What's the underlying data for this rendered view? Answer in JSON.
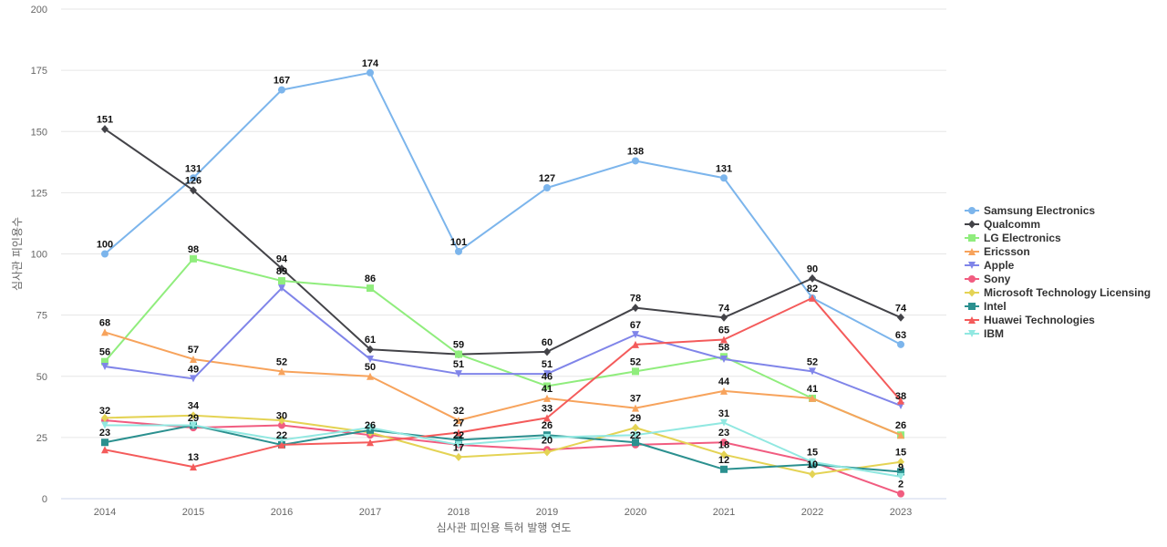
{
  "chart_data": {
    "type": "line",
    "title": "",
    "xlabel": "심사관 피인용 특허 발행 연도",
    "ylabel": "심사관 피인용수",
    "x": [
      "2014",
      "2015",
      "2016",
      "2017",
      "2018",
      "2019",
      "2020",
      "2021",
      "2022",
      "2023"
    ],
    "ylim": [
      0,
      200
    ],
    "yticks": [
      0,
      25,
      50,
      75,
      100,
      125,
      150,
      175,
      200
    ],
    "grid": true,
    "legend_position": "right",
    "series": [
      {
        "name": "Samsung Electronics",
        "color": "#7cb5ec",
        "marker": "circle",
        "values": [
          100,
          131,
          167,
          174,
          101,
          127,
          138,
          131,
          82,
          63
        ]
      },
      {
        "name": "Qualcomm",
        "color": "#434348",
        "marker": "diamond",
        "values": [
          151,
          126,
          94,
          61,
          59,
          60,
          78,
          74,
          90,
          74
        ]
      },
      {
        "name": "LG Electronics",
        "color": "#90ed7d",
        "marker": "square",
        "values": [
          56,
          98,
          89,
          86,
          59,
          46,
          52,
          58,
          41,
          26
        ]
      },
      {
        "name": "Ericsson",
        "color": "#f7a35c",
        "marker": "triangle",
        "values": [
          68,
          57,
          52,
          50,
          32,
          41,
          37,
          44,
          41,
          26
        ]
      },
      {
        "name": "Apple",
        "color": "#8085e9",
        "marker": "triangle-down",
        "values": [
          54,
          49,
          86,
          57,
          51,
          51,
          67,
          57,
          52,
          38
        ]
      },
      {
        "name": "Sony",
        "color": "#f15c80",
        "marker": "circle",
        "values": [
          32,
          29,
          30,
          26,
          22,
          20,
          22,
          23,
          15,
          2
        ]
      },
      {
        "name": "Microsoft Technology Licensing",
        "color": "#e4d354",
        "marker": "diamond",
        "values": [
          33,
          34,
          32,
          27,
          17,
          19,
          29,
          18,
          10,
          15
        ]
      },
      {
        "name": "Intel",
        "color": "#2b908f",
        "marker": "square",
        "values": [
          23,
          30,
          22,
          28,
          24,
          26,
          23,
          12,
          14,
          11
        ]
      },
      {
        "name": "Huawei Technologies",
        "color": "#f45b5b",
        "marker": "triangle",
        "values": [
          20,
          13,
          22,
          23,
          27,
          33,
          63,
          65,
          82,
          40
        ]
      },
      {
        "name": "IBM",
        "color": "#91e8e1",
        "marker": "triangle-down",
        "values": [
          30,
          30,
          24,
          29,
          22,
          25,
          26,
          31,
          15,
          9
        ]
      }
    ],
    "data_labels": [
      {
        "x": "2014",
        "values": [
          151,
          100,
          68,
          56,
          32,
          23
        ]
      },
      {
        "x": "2015",
        "values": [
          131,
          126,
          98,
          57,
          49,
          34,
          29,
          13
        ]
      },
      {
        "x": "2016",
        "values": [
          167,
          94,
          89,
          52,
          30,
          22
        ]
      },
      {
        "x": "2017",
        "values": [
          174,
          86,
          61,
          50,
          26
        ]
      },
      {
        "x": "2018",
        "values": [
          101,
          59,
          51,
          32,
          27,
          22,
          17
        ]
      },
      {
        "x": "2019",
        "values": [
          127,
          60,
          51,
          46,
          41,
          33,
          26,
          20
        ]
      },
      {
        "x": "2020",
        "values": [
          138,
          78,
          67,
          52,
          37,
          29,
          22
        ]
      },
      {
        "x": "2021",
        "values": [
          131,
          74,
          65,
          58,
          44,
          31,
          23,
          18,
          12
        ]
      },
      {
        "x": "2022",
        "values": [
          90,
          82,
          52,
          41,
          15,
          10
        ]
      },
      {
        "x": "2023",
        "values": [
          74,
          63,
          38,
          26,
          15,
          9,
          2
        ]
      }
    ]
  }
}
